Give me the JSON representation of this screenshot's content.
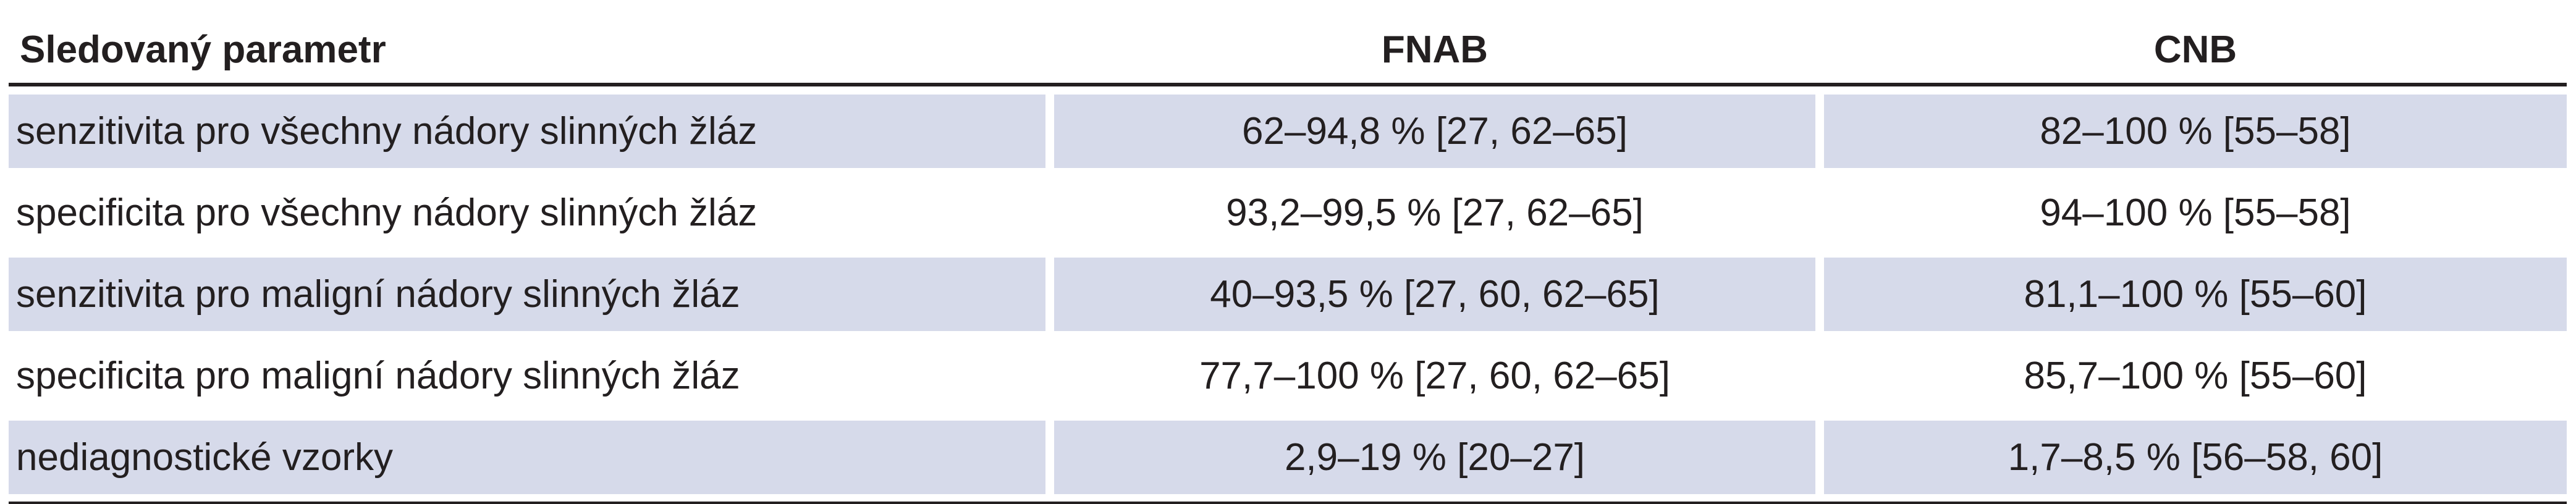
{
  "table": {
    "headers": [
      "Sledovaný parametr",
      "FNAB",
      "CNB"
    ],
    "rows": [
      [
        "senzitivita pro všechny nádory slinných žláz",
        "62–94,8 % [27, 62–65]",
        "82–100 % [55–58]"
      ],
      [
        "specificita pro všechny nádory slinných žláz",
        "93,2–99,5 % [27, 62–65]",
        "94–100 % [55–58]"
      ],
      [
        "senzitivita pro maligní nádory slinných žláz",
        "40–93,5 % [27, 60, 62–65]",
        "81,1–100 % [55–60]"
      ],
      [
        "specificita pro maligní nádory slinných žláz",
        "77,7–100 % [27, 60, 62–65]",
        "85,7–100 % [55–60]"
      ],
      [
        "nediagnostické vzorky",
        "2,9–19 % [20–27]",
        "1,7–8,5 % [56–58, 60]"
      ]
    ],
    "colors": {
      "shaded_row": "#d6daea",
      "text": "#231f20",
      "rule": "#231f20"
    }
  }
}
